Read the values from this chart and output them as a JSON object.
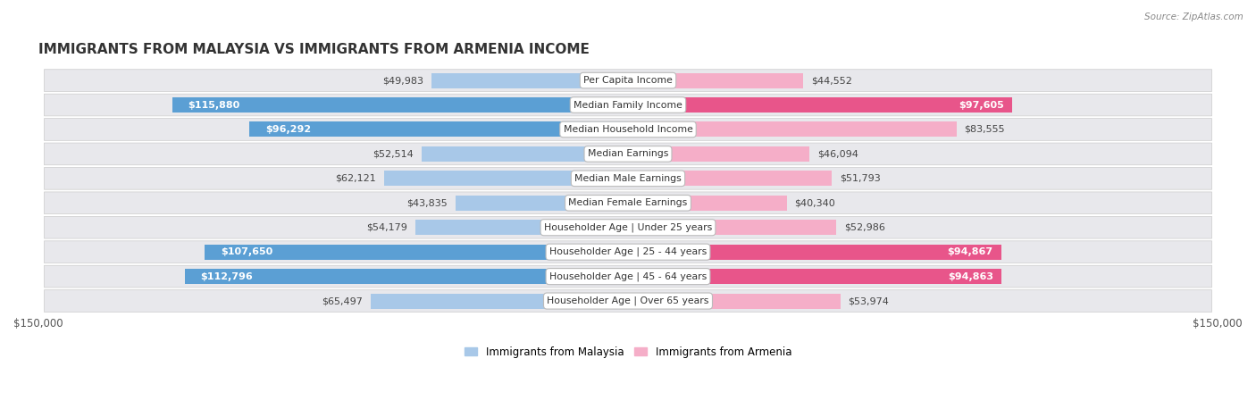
{
  "title": "IMMIGRANTS FROM MALAYSIA VS IMMIGRANTS FROM ARMENIA INCOME",
  "source": "Source: ZipAtlas.com",
  "categories": [
    "Per Capita Income",
    "Median Family Income",
    "Median Household Income",
    "Median Earnings",
    "Median Male Earnings",
    "Median Female Earnings",
    "Householder Age | Under 25 years",
    "Householder Age | 25 - 44 years",
    "Householder Age | 45 - 64 years",
    "Householder Age | Over 65 years"
  ],
  "malaysia_values": [
    49983,
    115880,
    96292,
    52514,
    62121,
    43835,
    54179,
    107650,
    112796,
    65497
  ],
  "armenia_values": [
    44552,
    97605,
    83555,
    46094,
    51793,
    40340,
    52986,
    94867,
    94863,
    53974
  ],
  "malaysia_labels": [
    "$49,983",
    "$115,880",
    "$96,292",
    "$52,514",
    "$62,121",
    "$43,835",
    "$54,179",
    "$107,650",
    "$112,796",
    "$65,497"
  ],
  "armenia_labels": [
    "$44,552",
    "$97,605",
    "$83,555",
    "$46,094",
    "$51,793",
    "$40,340",
    "$52,986",
    "$94,867",
    "$94,863",
    "$53,974"
  ],
  "malaysia_color_light": "#a8c8e8",
  "malaysia_color_dark": "#5b9fd4",
  "armenia_color_light": "#f5aec8",
  "armenia_color_dark": "#e8558a",
  "max_value": 150000,
  "legend_malaysia": "Immigrants from Malaysia",
  "legend_armenia": "Immigrants from Armenia",
  "background_color": "#ffffff",
  "row_bg_color": "#e8e8ec",
  "malaysia_high_threshold": 90000,
  "armenia_high_threshold": 90000
}
